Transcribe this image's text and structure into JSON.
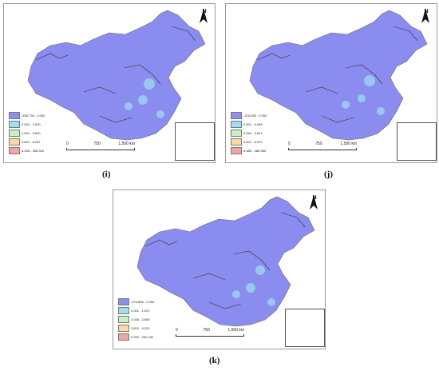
{
  "panels": [
    {
      "id": "i",
      "label": "(i)",
      "legend": [
        "-836.735 - 0.000",
        "0.001 - 1.000",
        "1.001 - 3.600",
        "3.601 - 8.297",
        "8.298 - 368.310"
      ]
    },
    {
      "id": "j",
      "label": "(j)",
      "legend": [
        "-318.285 - 0.000",
        "0.001 - 0.063",
        "0.064 - 3.821",
        "3.822 - 6.979",
        "6.980 - 486.980"
      ]
    },
    {
      "id": "k",
      "label": "(k)",
      "legend": [
        "-473.885 - 0.000",
        "0.001 - 1.047",
        "1.048 - 3.809",
        "3.810 - 9.331",
        "9.332 - 230.230"
      ]
    }
  ],
  "legend_colors": [
    "#8f8ff0",
    "#9fdff3",
    "#c6f2c0",
    "#fbd9a5",
    "#f3a3a3"
  ],
  "scalebar": {
    "ticks": [
      "0",
      "750",
      "1,500 km"
    ]
  },
  "north": {
    "letter": "N"
  },
  "map_fill": "#8b8cef"
}
